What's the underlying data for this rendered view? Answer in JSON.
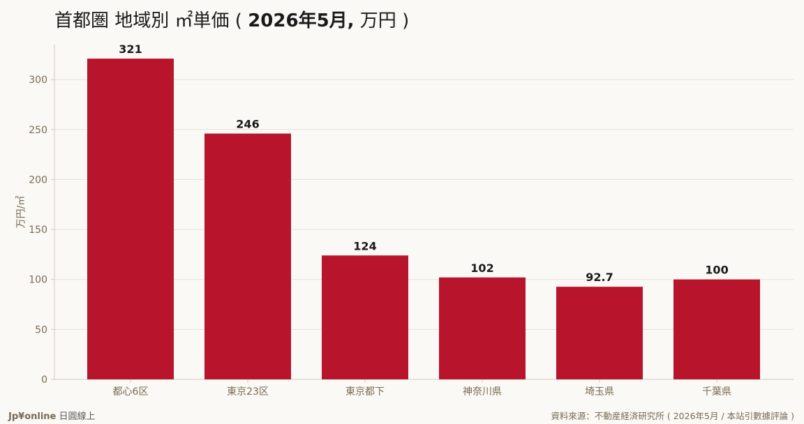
{
  "header": {
    "title_prefix": "首都圏 地域別 ㎡単価 ( ",
    "title_bold": "2026年5月,",
    "title_suffix": " 万円 )"
  },
  "footer": {
    "brand": "Jp¥online",
    "brand_sub": "日圓線上",
    "source": "資料來源：不動産経済研究所 ( 2026年5月 / 本站引數據評論 )"
  },
  "colors": {
    "bar": "#b8142b",
    "grid": "#e4e1da",
    "axis": "#cfcac0",
    "tick_text": "#7a6a55",
    "value_text": "#1a1a1a"
  },
  "chart_data": {
    "type": "bar",
    "title": "首都圏 地域別 ㎡単価 ( 2026年5月, 万円 )",
    "xlabel": "",
    "ylabel": "万円/㎡",
    "categories": [
      "都心6区",
      "東京23区",
      "東京都下",
      "神奈川県",
      "埼玉県",
      "千葉県"
    ],
    "values": [
      321,
      246,
      124,
      102,
      92.7,
      100
    ],
    "value_labels": [
      "321",
      "246",
      "124",
      "102",
      "92.7",
      "100"
    ],
    "ylim": [
      0,
      335
    ],
    "yticks": [
      0,
      50,
      100,
      150,
      200,
      250,
      300
    ],
    "grid": true
  }
}
